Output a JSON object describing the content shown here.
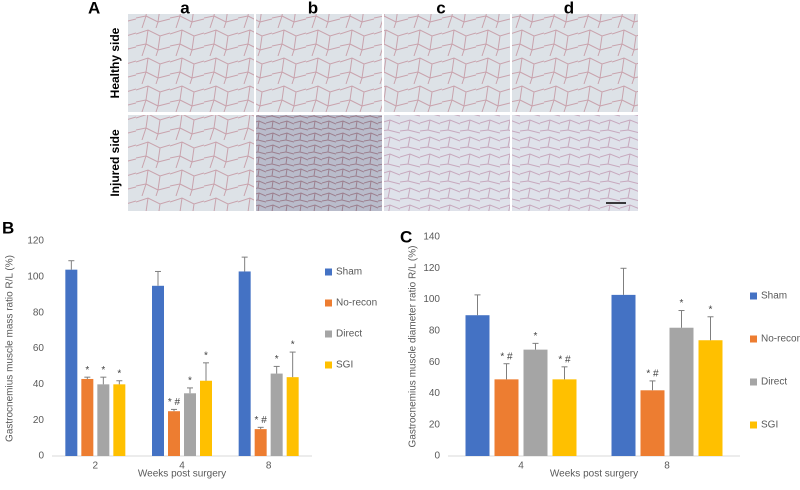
{
  "panel_a": {
    "letter": "A",
    "columns": [
      "a",
      "b",
      "c",
      "d"
    ],
    "rows": [
      "Healthy side",
      "Injured side"
    ]
  },
  "chart_data": [
    {
      "type": "bar",
      "letter": "B",
      "y_label": "Gastrocnemius muscle mass ratio R/L (%)",
      "x_label": "Weeks post surgery",
      "categories": [
        "2",
        "4",
        "8"
      ],
      "ylim": [
        0,
        120
      ],
      "yticks": [
        0,
        20,
        40,
        60,
        80,
        100,
        120
      ],
      "grid": false,
      "series": [
        {
          "name": "Sham",
          "color": "#4472c4",
          "values": [
            104,
            95,
            103
          ],
          "errors": [
            5,
            8,
            8
          ]
        },
        {
          "name": "No-recon",
          "color": "#ed7d31",
          "values": [
            43,
            25,
            15
          ],
          "errors": [
            1,
            1,
            1
          ],
          "annotations": [
            "*",
            "* #",
            "* #"
          ]
        },
        {
          "name": "Direct",
          "color": "#a5a5a5",
          "values": [
            40,
            35,
            46
          ],
          "errors": [
            4,
            3,
            4
          ],
          "annotations": [
            "*",
            "*",
            "*"
          ]
        },
        {
          "name": "SGI",
          "color": "#ffc000",
          "values": [
            40,
            42,
            44
          ],
          "errors": [
            2,
            10,
            14
          ],
          "annotations": [
            "*",
            "*",
            "*"
          ]
        }
      ],
      "legend": "right"
    },
    {
      "type": "bar",
      "letter": "C",
      "y_label": "Gastrocnemius muscle diameter ratio R/L (%)",
      "x_label": "Weeks post surgery",
      "categories": [
        "4",
        "8"
      ],
      "ylim": [
        0,
        140
      ],
      "yticks": [
        0,
        20,
        40,
        60,
        80,
        100,
        120,
        140
      ],
      "grid": false,
      "series": [
        {
          "name": "Sham",
          "color": "#4472c4",
          "values": [
            90,
            103
          ],
          "errors": [
            13,
            17
          ]
        },
        {
          "name": "No-recon",
          "color": "#ed7d31",
          "values": [
            49,
            42
          ],
          "errors": [
            10,
            6
          ],
          "annotations": [
            "* #",
            "* #"
          ]
        },
        {
          "name": "Direct",
          "color": "#a5a5a5",
          "values": [
            68,
            82
          ],
          "errors": [
            4,
            11
          ],
          "annotations": [
            "*",
            "*"
          ]
        },
        {
          "name": "SGI",
          "color": "#ffc000",
          "values": [
            49,
            74
          ],
          "errors": [
            8,
            15
          ],
          "annotations": [
            "* #",
            "*"
          ]
        }
      ],
      "legend": "right"
    }
  ]
}
